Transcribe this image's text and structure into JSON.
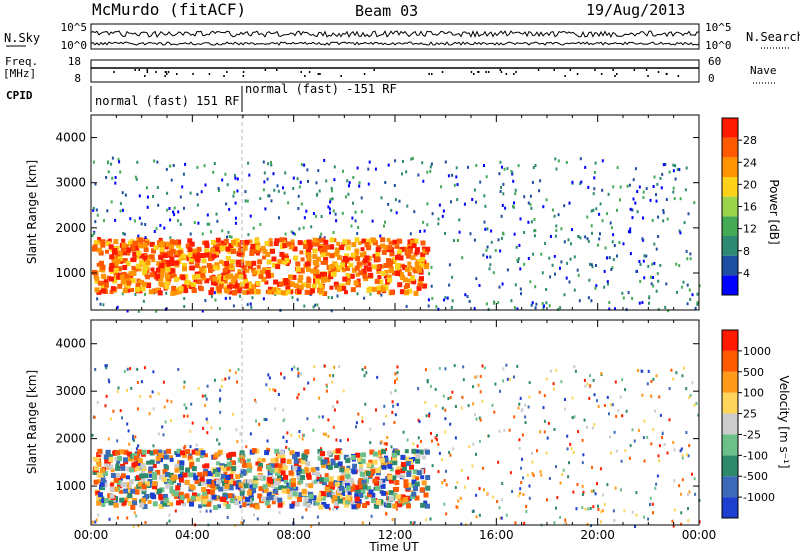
{
  "header": {
    "station": "McMurdo (fitACF)",
    "beam": "Beam 03",
    "date": "19/Aug/2013"
  },
  "sidebar_labels": {
    "nsky": "N.Sky",
    "nsearch": "N.Search",
    "freq": "Freq.",
    "freq_unit": "[MHz]",
    "nave": "Nave",
    "cpid": "CPID"
  },
  "noise_ticks": {
    "left": [
      "10^5",
      "10^0"
    ],
    "right": [
      "10^5",
      "10^0"
    ]
  },
  "freq_ticks": [
    "18",
    "8"
  ],
  "nave_ticks": [
    "60",
    "0"
  ],
  "cpid_modes": [
    "normal (fast) 151 RF",
    "normal (fast) -151 RF"
  ],
  "chart_data": [
    {
      "type": "heatmap",
      "name": "power",
      "ylabel": "Slant Range [km]",
      "xlabel": "Time UT",
      "x_ticks": [
        "00:00",
        "04:00",
        "08:00",
        "12:00",
        "16:00",
        "20:00",
        "00:00"
      ],
      "xlim_hours": [
        0,
        24
      ],
      "y_ticks": [
        "1000",
        "2000",
        "3000",
        "4000"
      ],
      "ylim": [
        180,
        4500
      ],
      "colorbar": {
        "label": "Power [dB]",
        "ticks": [
          "28",
          "24",
          "20",
          "16",
          "12",
          "8",
          "4"
        ],
        "range": [
          0,
          32
        ],
        "colors": [
          "#0000ff",
          "#1f4fa0",
          "#2e8a72",
          "#44aa55",
          "#9bd34a",
          "#ffd21a",
          "#ff9400",
          "#ff5a00",
          "#ff1a00"
        ]
      },
      "features": [
        {
          "desc": "strong echo band",
          "time_start": 0,
          "time_end": 13.2,
          "range_low": 600,
          "range_high": 1800,
          "power_db": 30
        },
        {
          "desc": "scattered weak echoes",
          "time_start": 0,
          "time_end": 24,
          "range_low": 180,
          "range_high": 3500,
          "power_db": 6
        }
      ]
    },
    {
      "type": "heatmap",
      "name": "velocity",
      "ylabel": "Slant Range [km]",
      "xlabel": "Time UT",
      "x_ticks": [
        "00:00",
        "04:00",
        "08:00",
        "12:00",
        "16:00",
        "20:00",
        "00:00"
      ],
      "xlim_hours": [
        0,
        24
      ],
      "y_ticks": [
        "1000",
        "2000",
        "3000",
        "4000"
      ],
      "ylim": [
        180,
        4500
      ],
      "colorbar": {
        "label": "Velocity [m s⁻¹]",
        "ticks": [
          "1000",
          "500",
          "100",
          "25",
          "-25",
          "-100",
          "-500",
          "-1000"
        ],
        "colors": [
          "#1d3fd0",
          "#3a6ab8",
          "#2e8a6a",
          "#6ec08a",
          "#cccccc",
          "#ffd45a",
          "#ff9a1a",
          "#ff5a00",
          "#ff1a00"
        ]
      },
      "features": [
        {
          "desc": "mixed-velocity echo band",
          "time_start": 0,
          "time_end": 13.2,
          "range_low": 600,
          "range_high": 1800,
          "velocity": 100
        }
      ]
    }
  ]
}
